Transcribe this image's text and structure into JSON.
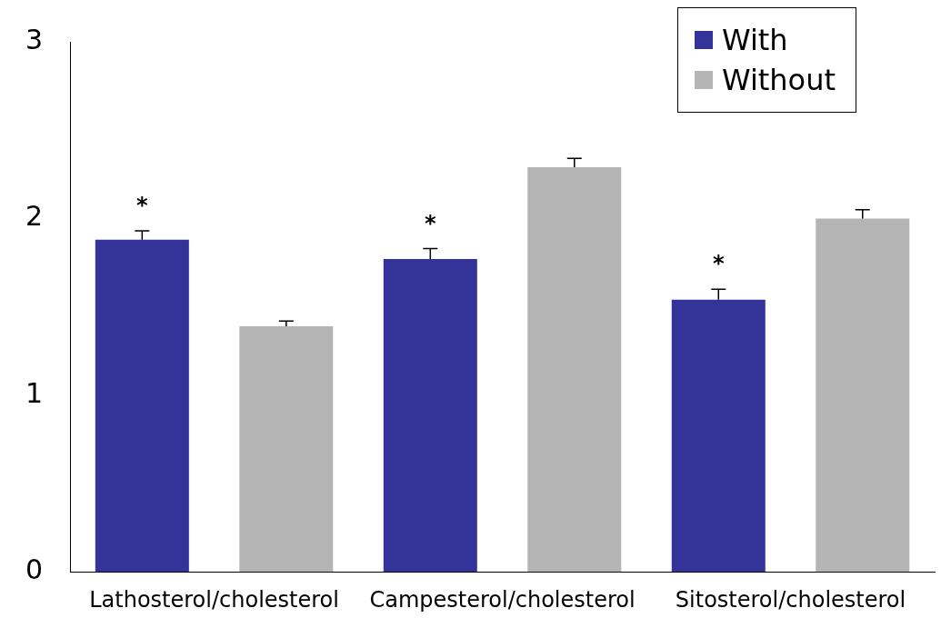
{
  "chart_data": {
    "type": "bar",
    "categories": [
      "Lathosterol/cholesterol",
      "Campesterol/cholesterol",
      "Sitosterol/cholesterol"
    ],
    "series": [
      {
        "name": "With",
        "color": "#33339a",
        "values": [
          1.88,
          1.77,
          1.54
        ],
        "errors": [
          0.05,
          0.06,
          0.06
        ]
      },
      {
        "name": "Without",
        "color": "#b4b4b4",
        "values": [
          1.39,
          2.29,
          2.0
        ],
        "errors": [
          0.03,
          0.05,
          0.05
        ]
      }
    ],
    "ylim": [
      0,
      3
    ],
    "yticks": [
      0,
      1,
      2,
      3
    ],
    "grid": false,
    "legend": "top right",
    "annotations": [
      "*",
      "*",
      "*"
    ]
  }
}
